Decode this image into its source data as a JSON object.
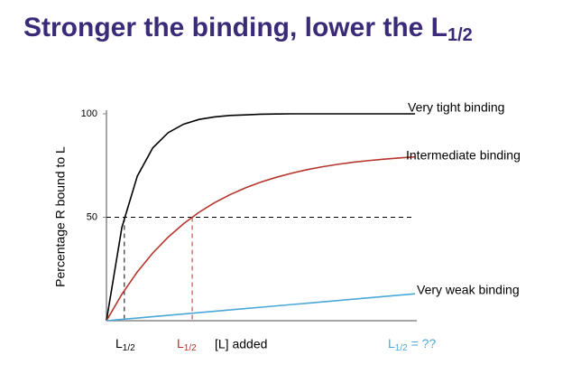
{
  "chart_data": {
    "type": "line",
    "title": {
      "main": "Stronger the binding, lower the L",
      "sub": "1/2"
    },
    "ylabel": "Percentage R bound to L",
    "xlabel": "[L] added",
    "x": [
      0,
      0.5,
      1,
      1.5,
      2,
      2.5,
      3,
      3.5,
      4,
      4.5,
      5,
      5.5,
      6,
      6.5,
      7,
      7.5,
      8,
      8.5,
      9,
      9.5,
      10
    ],
    "xlim": [
      0,
      10
    ],
    "ylim": [
      0,
      100
    ],
    "yticks": [
      50,
      100
    ],
    "reference_y": 50,
    "series": [
      {
        "name": "Very tight binding",
        "color": "#000000",
        "half_x": 0.58,
        "values": [
          0,
          45.1,
          69.9,
          83.5,
          90.9,
          95.0,
          97.3,
          98.5,
          99.2,
          99.5,
          99.8,
          99.9,
          100,
          100,
          100,
          100,
          100,
          100,
          100,
          100,
          100
        ]
      },
      {
        "name": "Intermediate binding",
        "color": "#b5352c",
        "half_x": 2.78,
        "values": [
          0,
          12.8,
          23.6,
          32.7,
          40.4,
          46.9,
          52.4,
          57.0,
          60.9,
          64.2,
          67.0,
          69.3,
          71.3,
          73.0,
          74.4,
          75.6,
          76.6,
          77.4,
          78.1,
          78.7,
          79.2
        ]
      },
      {
        "name": "Very weak binding",
        "color": "#4aa8d8",
        "values": [
          0,
          0.65,
          1.3,
          1.95,
          2.6,
          3.25,
          3.9,
          4.55,
          5.2,
          5.85,
          6.5,
          7.15,
          7.8,
          8.45,
          9.1,
          9.75,
          10.4,
          11.05,
          11.7,
          12.35,
          13
        ]
      }
    ],
    "x_labels": [
      {
        "main": "L",
        "sub": "1/2",
        "color": "#000000"
      },
      {
        "main": "L",
        "sub": "1/2",
        "color": "#b5352c"
      },
      {
        "main": "L",
        "sub": "1/2",
        "rest": " = ??",
        "color": "#4aa8d8"
      }
    ]
  }
}
